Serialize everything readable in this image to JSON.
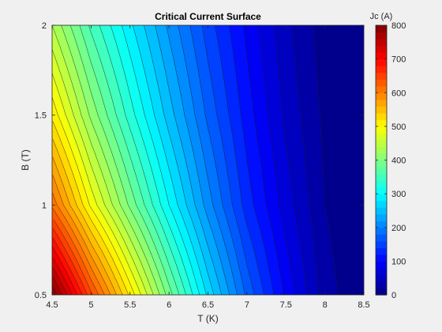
{
  "chart_data": {
    "type": "heatmap",
    "subtype": "filled-contour",
    "title": "Critical Current Surface",
    "xlabel": "T (K)",
    "ylabel": "B (T)",
    "xlim": [
      4.5,
      8.5
    ],
    "ylim": [
      0.5,
      2
    ],
    "xticks": [
      "4.5",
      "5",
      "5.5",
      "6",
      "6.5",
      "7",
      "7.5",
      "8",
      "8.5"
    ],
    "yticks": [
      "0.5",
      "1",
      "1.5",
      "2"
    ],
    "colorbar": {
      "label": "Jc (A)",
      "colormap": "jet",
      "range": [
        0,
        800
      ],
      "ticks": [
        "0",
        "100",
        "200",
        "300",
        "400",
        "500",
        "600",
        "700",
        "800"
      ]
    },
    "contour_step": 20,
    "grid": false,
    "surface": {
      "T": [
        4.5,
        5,
        5.5,
        6,
        6.5,
        7,
        7.5,
        8,
        8.5
      ],
      "B": [
        0.5,
        1,
        1.5,
        2
      ],
      "Jc": [
        [
          800,
          645,
          515,
          390,
          275,
          175,
          95,
          30,
          0
        ],
        [
          615,
          495,
          395,
          300,
          210,
          130,
          70,
          20,
          0
        ],
        [
          515,
          415,
          330,
          250,
          175,
          110,
          55,
          15,
          0
        ],
        [
          440,
          355,
          285,
          215,
          150,
          95,
          45,
          10,
          0
        ]
      ]
    }
  }
}
